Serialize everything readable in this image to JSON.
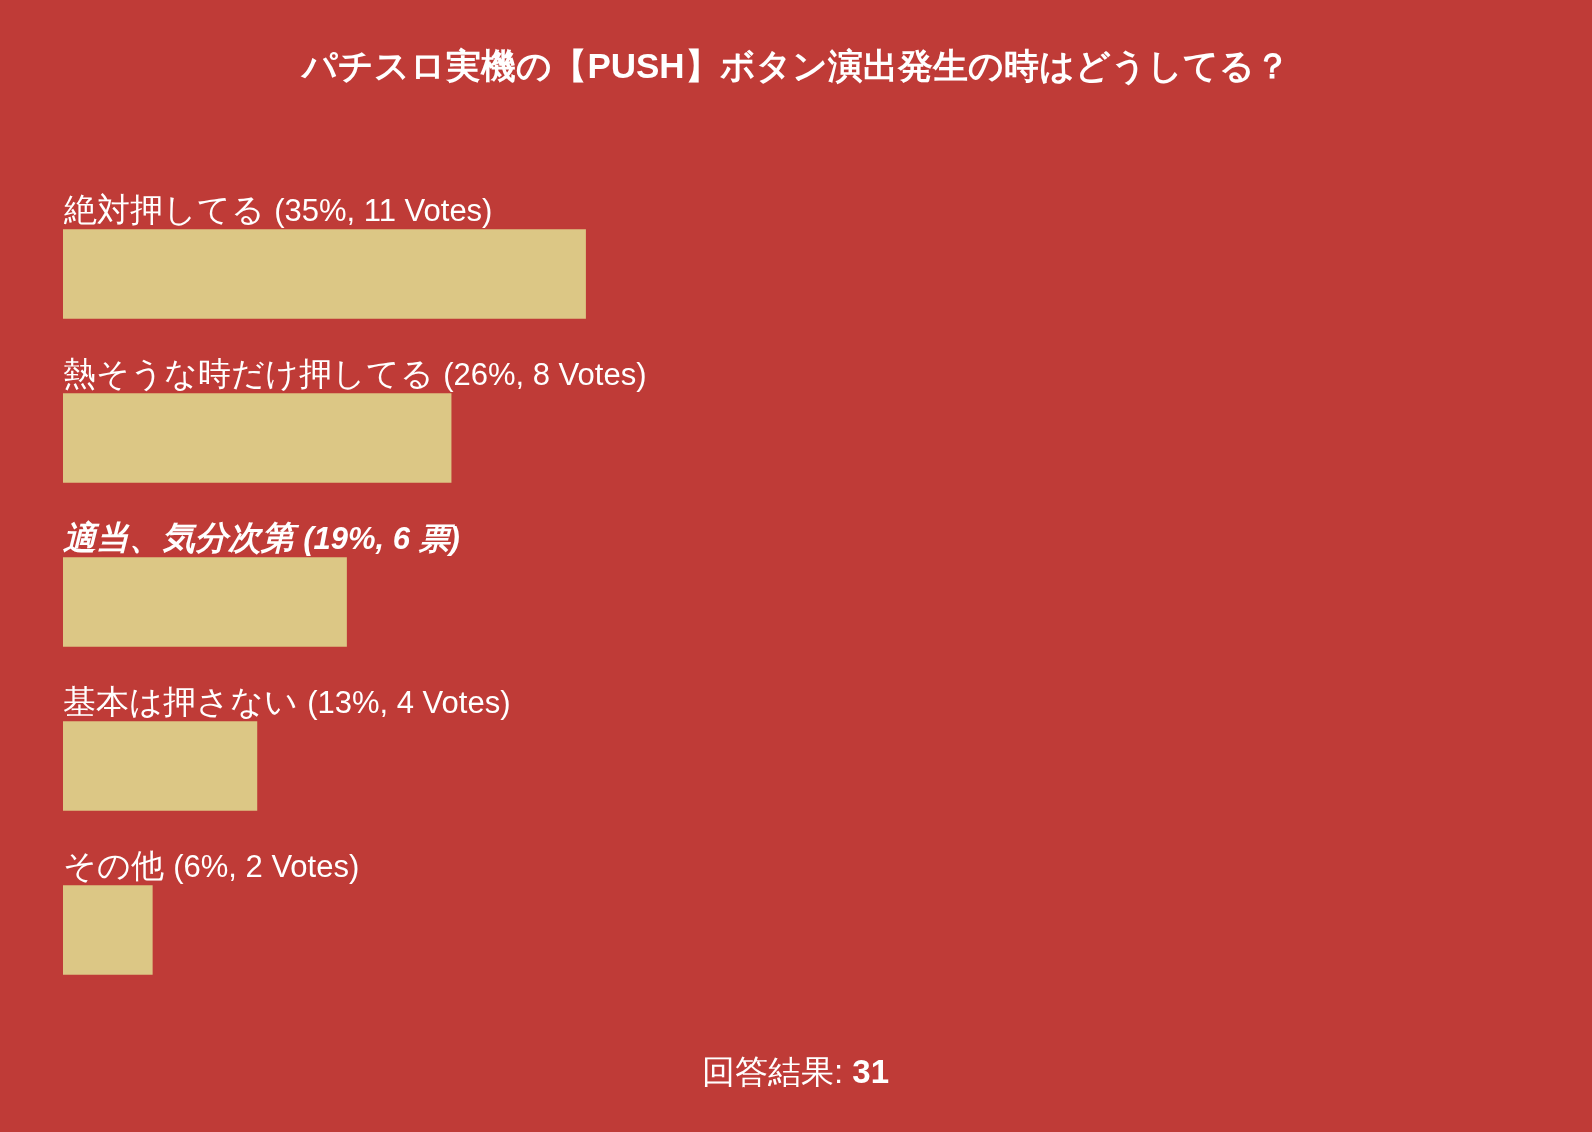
{
  "chart_data": {
    "type": "bar",
    "orientation": "horizontal",
    "title": "パチスロ実機の【PUSH】ボタン演出発生の時はどうしてる？",
    "categories": [
      "絶対押してる",
      "熱そうな時だけ押してる",
      "適当、気分次第",
      "基本は押さない",
      "その他"
    ],
    "values": [
      35,
      26,
      19,
      13,
      6
    ],
    "value_labels": [
      "(35%, 11 Votes)",
      "(26%, 8 Votes)",
      "(19%, 6 票)",
      "(13%, 4 Votes)",
      "(6%, 2 Votes)"
    ],
    "color": "#dcc785",
    "tick_labels": "y",
    "annotations": [
      "回答結果: 31"
    ]
  }
}
